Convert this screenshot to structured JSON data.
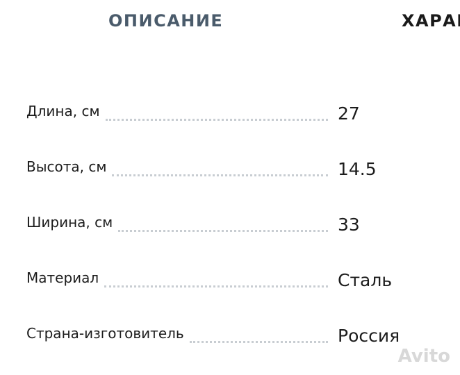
{
  "tabs": [
    "ОПИСАНИЕ",
    "ХАРАК"
  ],
  "specs": [
    {
      "label": "Длина, см",
      "value": "27"
    },
    {
      "label": "Высота, см",
      "value": "14.5"
    },
    {
      "label": "Ширина, см",
      "value": "33"
    },
    {
      "label": "Материал",
      "value": "Сталь"
    },
    {
      "label": "Страна-изготовитель",
      "value": "Россия"
    }
  ],
  "watermark": "Avito"
}
